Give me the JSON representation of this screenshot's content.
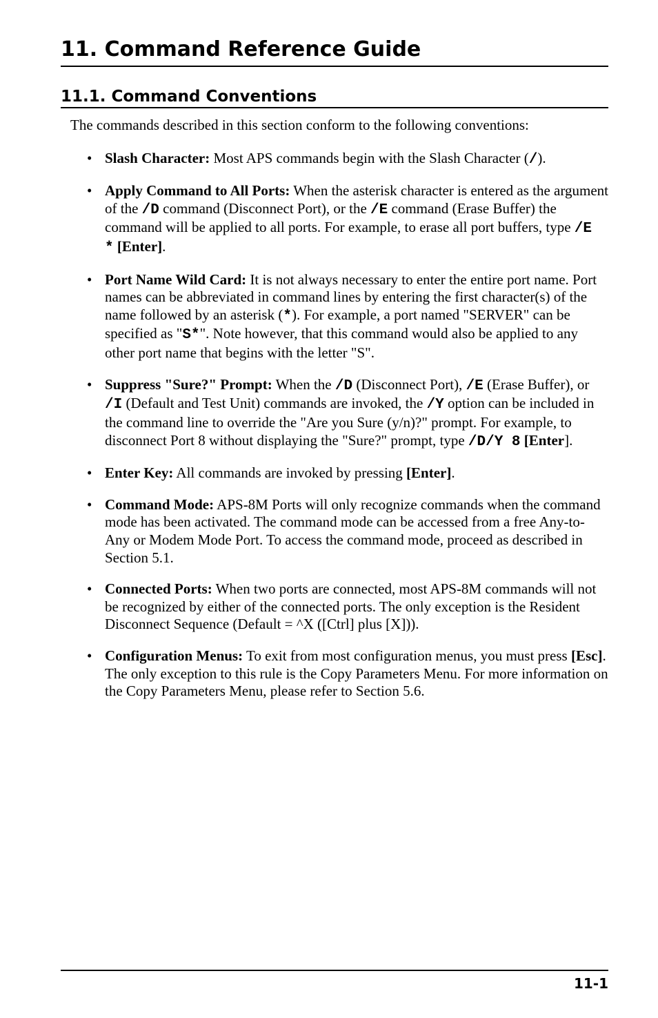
{
  "chapter": {
    "title": "11. Command Reference Guide"
  },
  "section": {
    "number": "11.1.",
    "title": "Command Conventions"
  },
  "intro": "The commands described in this section conform to the following conventions:",
  "bullets": [
    {
      "lead": "Slash Character:",
      "rest1": "  Most APS commands begin with the Slash Character (",
      "code1": "/",
      "rest2": ")."
    },
    {
      "lead": "Apply Command to All Ports:",
      "rest1": "  When the asterisk character is entered as the argument of the ",
      "code1": "/D",
      "rest2": " command (Disconnect Port), or the ",
      "code2": "/E",
      "rest3": " command (Erase Buffer) the command will be applied to all ports.  For example, to erase all port buffers, type ",
      "code3": "/E *",
      "rest4": " ",
      "bold4": "[Enter]",
      "rest5": "."
    },
    {
      "lead": "Port Name Wild Card:",
      "rest1": "  It is not always necessary to enter the entire port name.  Port names can be abbreviated in command lines by entering the first character(s) of the name followed by an asterisk (",
      "code1": "*",
      "rest2": ").  For example, a port named \"SERVER\" can be specified as \"",
      "code2": "S*",
      "rest3": "\".  Note however, that this command would also be applied to any other port name that begins with the letter \"S\"."
    },
    {
      "lead": "Suppress \"Sure?\" Prompt:",
      "rest1": "  When the  ",
      "code1": "/D",
      "rest2": " (Disconnect Port),  ",
      "code2": "/E",
      "rest3": " (Erase Buffer), or ",
      "code3": "/I",
      "rest4": " (Default and Test Unit) commands are invoked, the ",
      "code4": "/Y",
      "rest5": " option can be included in the command line to override the \"Are you Sure (y/n)?\" prompt.  For example, to disconnect Port 8 without displaying the \"Sure?\" prompt, type ",
      "code5": "/D/Y 8",
      "rest6": " ",
      "bold6": "[Enter",
      "rest7": "]."
    },
    {
      "lead": "Enter Key:",
      "rest1": "  All commands are invoked by pressing ",
      "bold1": "[Enter]",
      "rest2": "."
    },
    {
      "lead": "Command Mode:",
      "rest1": "  APS-8M Ports will only recognize commands when the command mode has been activated.  The command mode can be accessed from a free Any-to-Any or Modem Mode Port.  To access the command mode, proceed as described in Section 5.1."
    },
    {
      "lead": "Connected Ports:",
      "rest1": "  When two ports are connected, most APS-8M commands will not be recognized by either of the connected ports.  The only exception is the Resident Disconnect Sequence (Default = ^X ([Ctrl] plus [X]))."
    },
    {
      "lead": "Configuration Menus:",
      "rest1": "  To exit from most configuration menus, you must press ",
      "bold1": "[Esc]",
      "rest2": ".  The only exception to this rule is the Copy Parameters Menu.  For more information on the Copy Parameters Menu, please refer to Section 5.6."
    }
  ],
  "footer": {
    "pageNumber": "11-1"
  }
}
